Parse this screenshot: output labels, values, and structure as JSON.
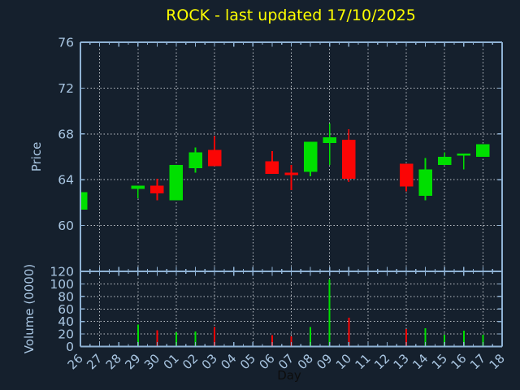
{
  "colors": {
    "background": "#15202d",
    "title": "#ffff00",
    "up": "#00df00",
    "down": "#fb0505",
    "spine": "#8fb2d4",
    "tick_label": "#a9c6e2",
    "grid": "#bcc1c7",
    "xlabel": "#0d0d0d"
  },
  "chart_data": {
    "type": "candlestick",
    "title": "ROCK - last updated 17/10/2025",
    "xlabel": "Day",
    "grid": "dotted",
    "x_categories": [
      "26",
      "27",
      "28",
      "29",
      "30",
      "01",
      "02",
      "03",
      "04",
      "05",
      "06",
      "07",
      "08",
      "09",
      "10",
      "11",
      "12",
      "13",
      "14",
      "15",
      "16",
      "17",
      "18"
    ],
    "price_axis": {
      "label": "Price",
      "range": [
        56,
        76
      ],
      "ticks": [
        60,
        64,
        68,
        72,
        76
      ]
    },
    "volume_axis": {
      "label": "Volume (0000)",
      "range": [
        0,
        120
      ],
      "ticks": [
        0,
        20,
        40,
        60,
        80,
        100,
        120
      ]
    },
    "candles": [
      {
        "day": "26",
        "open": 61.4,
        "high": 62.9,
        "low": 61.4,
        "close": 62.9,
        "volume": null
      },
      {
        "day": "29",
        "open": 63.2,
        "high": 63.5,
        "low": 62.4,
        "close": 63.5,
        "volume": 35
      },
      {
        "day": "30",
        "open": 63.5,
        "high": 64.1,
        "low": 62.2,
        "close": 62.8,
        "volume": 26
      },
      {
        "day": "01",
        "open": 62.2,
        "high": 65.3,
        "low": 62.2,
        "close": 65.3,
        "volume": 23
      },
      {
        "day": "02",
        "open": 65.0,
        "high": 66.8,
        "low": 64.6,
        "close": 66.4,
        "volume": 24
      },
      {
        "day": "03",
        "open": 66.6,
        "high": 67.8,
        "low": 65.2,
        "close": 65.2,
        "volume": 31
      },
      {
        "day": "06",
        "open": 65.6,
        "high": 66.5,
        "low": 64.5,
        "close": 64.5,
        "volume": 18
      },
      {
        "day": "07",
        "open": 64.6,
        "high": 65.3,
        "low": 63.1,
        "close": 64.4,
        "volume": 16
      },
      {
        "day": "08",
        "open": 64.7,
        "high": 67.3,
        "low": 64.3,
        "close": 67.3,
        "volume": 31
      },
      {
        "day": "09",
        "open": 67.2,
        "high": 68.9,
        "low": 65.3,
        "close": 67.7,
        "volume": 107
      },
      {
        "day": "10",
        "open": 67.5,
        "high": 68.4,
        "low": 63.8,
        "close": 64.1,
        "volume": 46
      },
      {
        "day": "13",
        "open": 65.4,
        "high": 65.4,
        "low": 63.0,
        "close": 63.4,
        "volume": 28
      },
      {
        "day": "14",
        "open": 62.6,
        "high": 65.9,
        "low": 62.2,
        "close": 64.9,
        "volume": 29
      },
      {
        "day": "15",
        "open": 65.3,
        "high": 66.4,
        "low": 65.3,
        "close": 66.0,
        "volume": 19
      },
      {
        "day": "16",
        "open": 66.1,
        "high": 66.3,
        "low": 64.9,
        "close": 66.3,
        "volume": 25
      },
      {
        "day": "17",
        "open": 66.0,
        "high": 67.1,
        "low": 66.0,
        "close": 67.1,
        "volume": 19
      }
    ]
  }
}
